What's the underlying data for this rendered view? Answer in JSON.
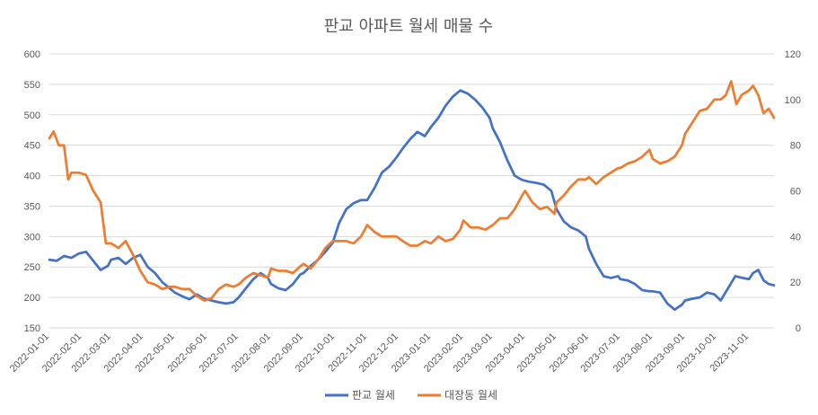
{
  "chart_data": {
    "type": "line",
    "title": "판교 아파트 월세 매물 수",
    "x_start": "2022-01-01",
    "x_end": "2023-11-25",
    "x_tick_labels": [
      "2022-01-01",
      "2022-02-01",
      "2022-03-01",
      "2022-04-01",
      "2022-05-01",
      "2022-06-01",
      "2022-07-01",
      "2022-08-01",
      "2022-09-01",
      "2022-10-01",
      "2022-11-01",
      "2022-12-01",
      "2023-01-01",
      "2023-02-01",
      "2023-03-01",
      "2023-04-01",
      "2023-05-01",
      "2023-06-01",
      "2023-07-01",
      "2023-08-01",
      "2023-09-01",
      "2023-10-01",
      "2023-11-01"
    ],
    "y_left": {
      "min": 150,
      "max": 600,
      "step": 50,
      "ticks": [
        "150",
        "200",
        "250",
        "300",
        "350",
        "400",
        "450",
        "500",
        "550",
        "600"
      ]
    },
    "y_right": {
      "min": 0,
      "max": 120,
      "step": 20,
      "ticks": [
        "0",
        "20",
        "40",
        "60",
        "80",
        "100",
        "120"
      ]
    },
    "grid": true,
    "legend_position": "bottom",
    "series": [
      {
        "name": "판교 월세",
        "axis": "left",
        "color": "#4472C4",
        "points": [
          [
            "2022-01-01",
            262
          ],
          [
            "2022-01-08",
            260
          ],
          [
            "2022-01-15",
            268
          ],
          [
            "2022-01-22",
            265
          ],
          [
            "2022-01-29",
            272
          ],
          [
            "2022-02-05",
            275
          ],
          [
            "2022-02-12",
            260
          ],
          [
            "2022-02-19",
            245
          ],
          [
            "2022-02-26",
            252
          ],
          [
            "2022-03-01",
            262
          ],
          [
            "2022-03-08",
            265
          ],
          [
            "2022-03-15",
            255
          ],
          [
            "2022-03-22",
            265
          ],
          [
            "2022-03-29",
            270
          ],
          [
            "2022-04-05",
            250
          ],
          [
            "2022-04-12",
            240
          ],
          [
            "2022-04-19",
            225
          ],
          [
            "2022-04-26",
            215
          ],
          [
            "2022-05-01",
            208
          ],
          [
            "2022-05-08",
            202
          ],
          [
            "2022-05-15",
            197
          ],
          [
            "2022-05-22",
            205
          ],
          [
            "2022-05-29",
            198
          ],
          [
            "2022-06-05",
            195
          ],
          [
            "2022-06-12",
            192
          ],
          [
            "2022-06-19",
            190
          ],
          [
            "2022-06-26",
            192
          ],
          [
            "2022-07-01",
            200
          ],
          [
            "2022-07-08",
            215
          ],
          [
            "2022-07-15",
            230
          ],
          [
            "2022-07-22",
            240
          ],
          [
            "2022-07-29",
            232
          ],
          [
            "2022-08-01",
            222
          ],
          [
            "2022-08-08",
            215
          ],
          [
            "2022-08-15",
            212
          ],
          [
            "2022-08-22",
            222
          ],
          [
            "2022-08-29",
            238
          ],
          [
            "2022-09-01",
            240
          ],
          [
            "2022-09-08",
            252
          ],
          [
            "2022-09-15",
            262
          ],
          [
            "2022-09-22",
            275
          ],
          [
            "2022-09-29",
            290
          ],
          [
            "2022-10-05",
            322
          ],
          [
            "2022-10-12",
            345
          ],
          [
            "2022-10-19",
            355
          ],
          [
            "2022-10-26",
            360
          ],
          [
            "2022-11-01",
            360
          ],
          [
            "2022-11-08",
            380
          ],
          [
            "2022-11-15",
            405
          ],
          [
            "2022-11-22",
            415
          ],
          [
            "2022-11-29",
            430
          ],
          [
            "2022-12-05",
            445
          ],
          [
            "2022-12-12",
            460
          ],
          [
            "2022-12-19",
            472
          ],
          [
            "2022-12-26",
            465
          ],
          [
            "2023-01-01",
            480
          ],
          [
            "2023-01-08",
            495
          ],
          [
            "2023-01-15",
            515
          ],
          [
            "2023-01-22",
            530
          ],
          [
            "2023-01-29",
            540
          ],
          [
            "2023-02-05",
            535
          ],
          [
            "2023-02-12",
            525
          ],
          [
            "2023-02-19",
            512
          ],
          [
            "2023-02-26",
            495
          ],
          [
            "2023-03-01",
            478
          ],
          [
            "2023-03-08",
            455
          ],
          [
            "2023-03-15",
            425
          ],
          [
            "2023-03-22",
            400
          ],
          [
            "2023-03-29",
            393
          ],
          [
            "2023-04-05",
            390
          ],
          [
            "2023-04-12",
            388
          ],
          [
            "2023-04-19",
            385
          ],
          [
            "2023-04-26",
            375
          ],
          [
            "2023-05-01",
            345
          ],
          [
            "2023-05-08",
            325
          ],
          [
            "2023-05-15",
            315
          ],
          [
            "2023-05-22",
            310
          ],
          [
            "2023-05-29",
            300
          ],
          [
            "2023-06-01",
            280
          ],
          [
            "2023-06-08",
            255
          ],
          [
            "2023-06-15",
            235
          ],
          [
            "2023-06-22",
            232
          ],
          [
            "2023-06-29",
            235
          ],
          [
            "2023-07-01",
            230
          ],
          [
            "2023-07-08",
            228
          ],
          [
            "2023-07-15",
            222
          ],
          [
            "2023-07-22",
            212
          ],
          [
            "2023-07-29",
            210
          ],
          [
            "2023-08-01",
            210
          ],
          [
            "2023-08-08",
            208
          ],
          [
            "2023-08-15",
            190
          ],
          [
            "2023-08-22",
            180
          ],
          [
            "2023-08-29",
            188
          ],
          [
            "2023-09-01",
            195
          ],
          [
            "2023-09-08",
            198
          ],
          [
            "2023-09-15",
            200
          ],
          [
            "2023-09-22",
            208
          ],
          [
            "2023-09-29",
            205
          ],
          [
            "2023-10-05",
            195
          ],
          [
            "2023-10-12",
            215
          ],
          [
            "2023-10-19",
            235
          ],
          [
            "2023-10-26",
            232
          ],
          [
            "2023-11-01",
            230
          ],
          [
            "2023-11-05",
            240
          ],
          [
            "2023-11-10",
            245
          ],
          [
            "2023-11-15",
            228
          ],
          [
            "2023-11-20",
            222
          ],
          [
            "2023-11-25",
            220
          ]
        ]
      },
      {
        "name": "대장동 월세",
        "axis": "right",
        "color": "#ED7D31",
        "points": [
          [
            "2022-01-01",
            83
          ],
          [
            "2022-01-05",
            86
          ],
          [
            "2022-01-10",
            80
          ],
          [
            "2022-01-15",
            80
          ],
          [
            "2022-01-19",
            65
          ],
          [
            "2022-01-22",
            68
          ],
          [
            "2022-01-29",
            68
          ],
          [
            "2022-02-05",
            67
          ],
          [
            "2022-02-12",
            60
          ],
          [
            "2022-02-19",
            55
          ],
          [
            "2022-02-24",
            37
          ],
          [
            "2022-03-01",
            37
          ],
          [
            "2022-03-08",
            35
          ],
          [
            "2022-03-15",
            38
          ],
          [
            "2022-03-22",
            32
          ],
          [
            "2022-03-29",
            25
          ],
          [
            "2022-04-05",
            20
          ],
          [
            "2022-04-12",
            19
          ],
          [
            "2022-04-19",
            17
          ],
          [
            "2022-04-26",
            18
          ],
          [
            "2022-05-01",
            18
          ],
          [
            "2022-05-08",
            17
          ],
          [
            "2022-05-15",
            17
          ],
          [
            "2022-05-22",
            14
          ],
          [
            "2022-05-29",
            12
          ],
          [
            "2022-06-05",
            13
          ],
          [
            "2022-06-12",
            17
          ],
          [
            "2022-06-19",
            19
          ],
          [
            "2022-06-26",
            18
          ],
          [
            "2022-07-01",
            19
          ],
          [
            "2022-07-08",
            22
          ],
          [
            "2022-07-15",
            24
          ],
          [
            "2022-07-22",
            23
          ],
          [
            "2022-07-29",
            22
          ],
          [
            "2022-08-01",
            26
          ],
          [
            "2022-08-08",
            25
          ],
          [
            "2022-08-15",
            25
          ],
          [
            "2022-08-22",
            24
          ],
          [
            "2022-08-29",
            27
          ],
          [
            "2022-09-01",
            28
          ],
          [
            "2022-09-08",
            26
          ],
          [
            "2022-09-15",
            30
          ],
          [
            "2022-09-22",
            35
          ],
          [
            "2022-09-29",
            38
          ],
          [
            "2022-10-05",
            38
          ],
          [
            "2022-10-12",
            38
          ],
          [
            "2022-10-19",
            37
          ],
          [
            "2022-10-26",
            40
          ],
          [
            "2022-11-01",
            45
          ],
          [
            "2022-11-08",
            42
          ],
          [
            "2022-11-15",
            40
          ],
          [
            "2022-11-22",
            40
          ],
          [
            "2022-11-29",
            40
          ],
          [
            "2022-12-05",
            38
          ],
          [
            "2022-12-12",
            36
          ],
          [
            "2022-12-19",
            36
          ],
          [
            "2022-12-26",
            38
          ],
          [
            "2023-01-01",
            37
          ],
          [
            "2023-01-08",
            40
          ],
          [
            "2023-01-15",
            38
          ],
          [
            "2023-01-22",
            39
          ],
          [
            "2023-01-29",
            43
          ],
          [
            "2023-02-01",
            47
          ],
          [
            "2023-02-08",
            44
          ],
          [
            "2023-02-15",
            44
          ],
          [
            "2023-02-22",
            43
          ],
          [
            "2023-03-01",
            45
          ],
          [
            "2023-03-08",
            48
          ],
          [
            "2023-03-15",
            48
          ],
          [
            "2023-03-22",
            52
          ],
          [
            "2023-03-29",
            58
          ],
          [
            "2023-04-01",
            60
          ],
          [
            "2023-04-08",
            55
          ],
          [
            "2023-04-15",
            52
          ],
          [
            "2023-04-22",
            53
          ],
          [
            "2023-04-29",
            50
          ],
          [
            "2023-05-01",
            55
          ],
          [
            "2023-05-08",
            58
          ],
          [
            "2023-05-15",
            62
          ],
          [
            "2023-05-22",
            65
          ],
          [
            "2023-05-29",
            65
          ],
          [
            "2023-06-01",
            66
          ],
          [
            "2023-06-08",
            63
          ],
          [
            "2023-06-15",
            66
          ],
          [
            "2023-06-22",
            68
          ],
          [
            "2023-06-29",
            70
          ],
          [
            "2023-07-01",
            70
          ],
          [
            "2023-07-08",
            72
          ],
          [
            "2023-07-15",
            73
          ],
          [
            "2023-07-22",
            75
          ],
          [
            "2023-07-29",
            78
          ],
          [
            "2023-08-01",
            74
          ],
          [
            "2023-08-08",
            72
          ],
          [
            "2023-08-15",
            73
          ],
          [
            "2023-08-22",
            75
          ],
          [
            "2023-08-29",
            80
          ],
          [
            "2023-09-01",
            85
          ],
          [
            "2023-09-08",
            90
          ],
          [
            "2023-09-15",
            95
          ],
          [
            "2023-09-22",
            96
          ],
          [
            "2023-09-29",
            100
          ],
          [
            "2023-10-05",
            100
          ],
          [
            "2023-10-10",
            102
          ],
          [
            "2023-10-15",
            108
          ],
          [
            "2023-10-20",
            98
          ],
          [
            "2023-10-25",
            102
          ],
          [
            "2023-11-01",
            104
          ],
          [
            "2023-11-05",
            106
          ],
          [
            "2023-11-10",
            102
          ],
          [
            "2023-11-15",
            94
          ],
          [
            "2023-11-20",
            96
          ],
          [
            "2023-11-25",
            92
          ]
        ]
      }
    ]
  }
}
